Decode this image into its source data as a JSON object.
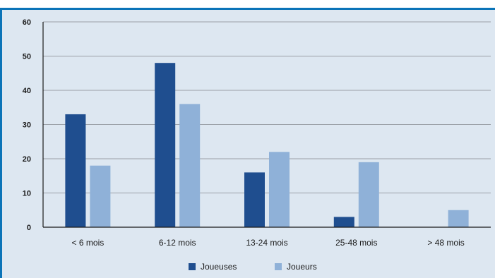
{
  "chart_data": {
    "type": "bar",
    "title": "",
    "xlabel": "",
    "ylabel": "",
    "categories": [
      "< 6 mois",
      "6-12 mois",
      "13-24 mois",
      "25-48 mois",
      "> 48 mois"
    ],
    "series": [
      {
        "name": "Joueuses",
        "values": [
          33,
          48,
          16,
          3,
          0
        ],
        "color": "#1f4e8f"
      },
      {
        "name": "Joueurs",
        "values": [
          18,
          36,
          22,
          19,
          5
        ],
        "color": "#8fb1d8"
      }
    ],
    "ylim": [
      0,
      60
    ],
    "yticks": [
      "0",
      "10",
      "20",
      "30",
      "40",
      "50",
      "60"
    ],
    "grid": true,
    "legend_position": "bottom-center"
  },
  "style": {
    "panel_bg": "#dde7f1",
    "accent": "#0b74b8"
  }
}
